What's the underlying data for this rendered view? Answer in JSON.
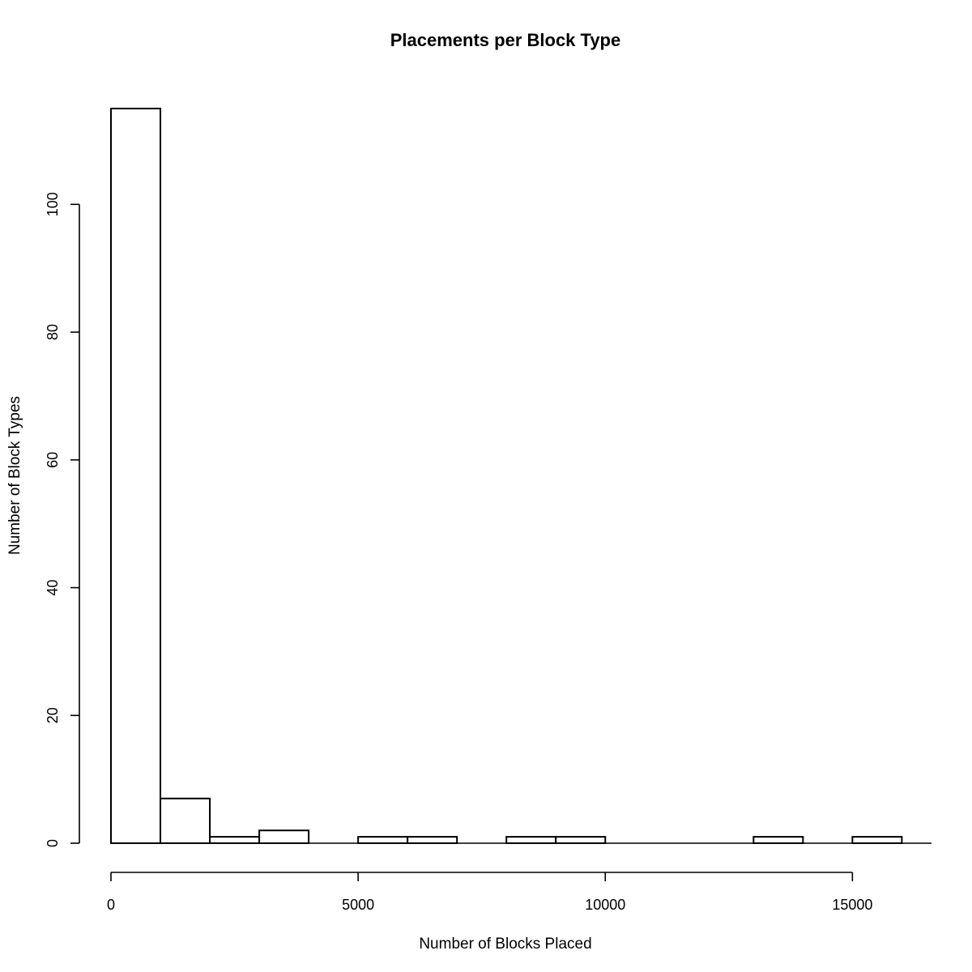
{
  "chart_data": {
    "type": "bar",
    "title": "Placements per Block Type",
    "xlabel": "Number of Blocks Placed",
    "ylabel": "Number of Block Types",
    "bin_edges": [
      0,
      1000,
      2000,
      3000,
      4000,
      5000,
      6000,
      7000,
      8000,
      9000,
      10000,
      11000,
      12000,
      13000,
      14000,
      15000,
      16000
    ],
    "values": [
      115,
      7,
      1,
      2,
      0,
      1,
      1,
      0,
      1,
      1,
      0,
      0,
      0,
      1,
      0,
      1
    ],
    "xlim": [
      0,
      16600
    ],
    "ylim": [
      0,
      115
    ],
    "x_ticks": [
      0,
      5000,
      10000,
      15000
    ],
    "x_tick_labels": [
      "0",
      "5000",
      "10000",
      "15000"
    ],
    "y_ticks": [
      0,
      20,
      40,
      60,
      80,
      100
    ],
    "y_tick_labels": [
      "0",
      "20",
      "40",
      "60",
      "80",
      "100"
    ],
    "grid": false,
    "colors": {
      "bar_fill": "#ffffff",
      "bar_stroke": "#000000"
    }
  }
}
